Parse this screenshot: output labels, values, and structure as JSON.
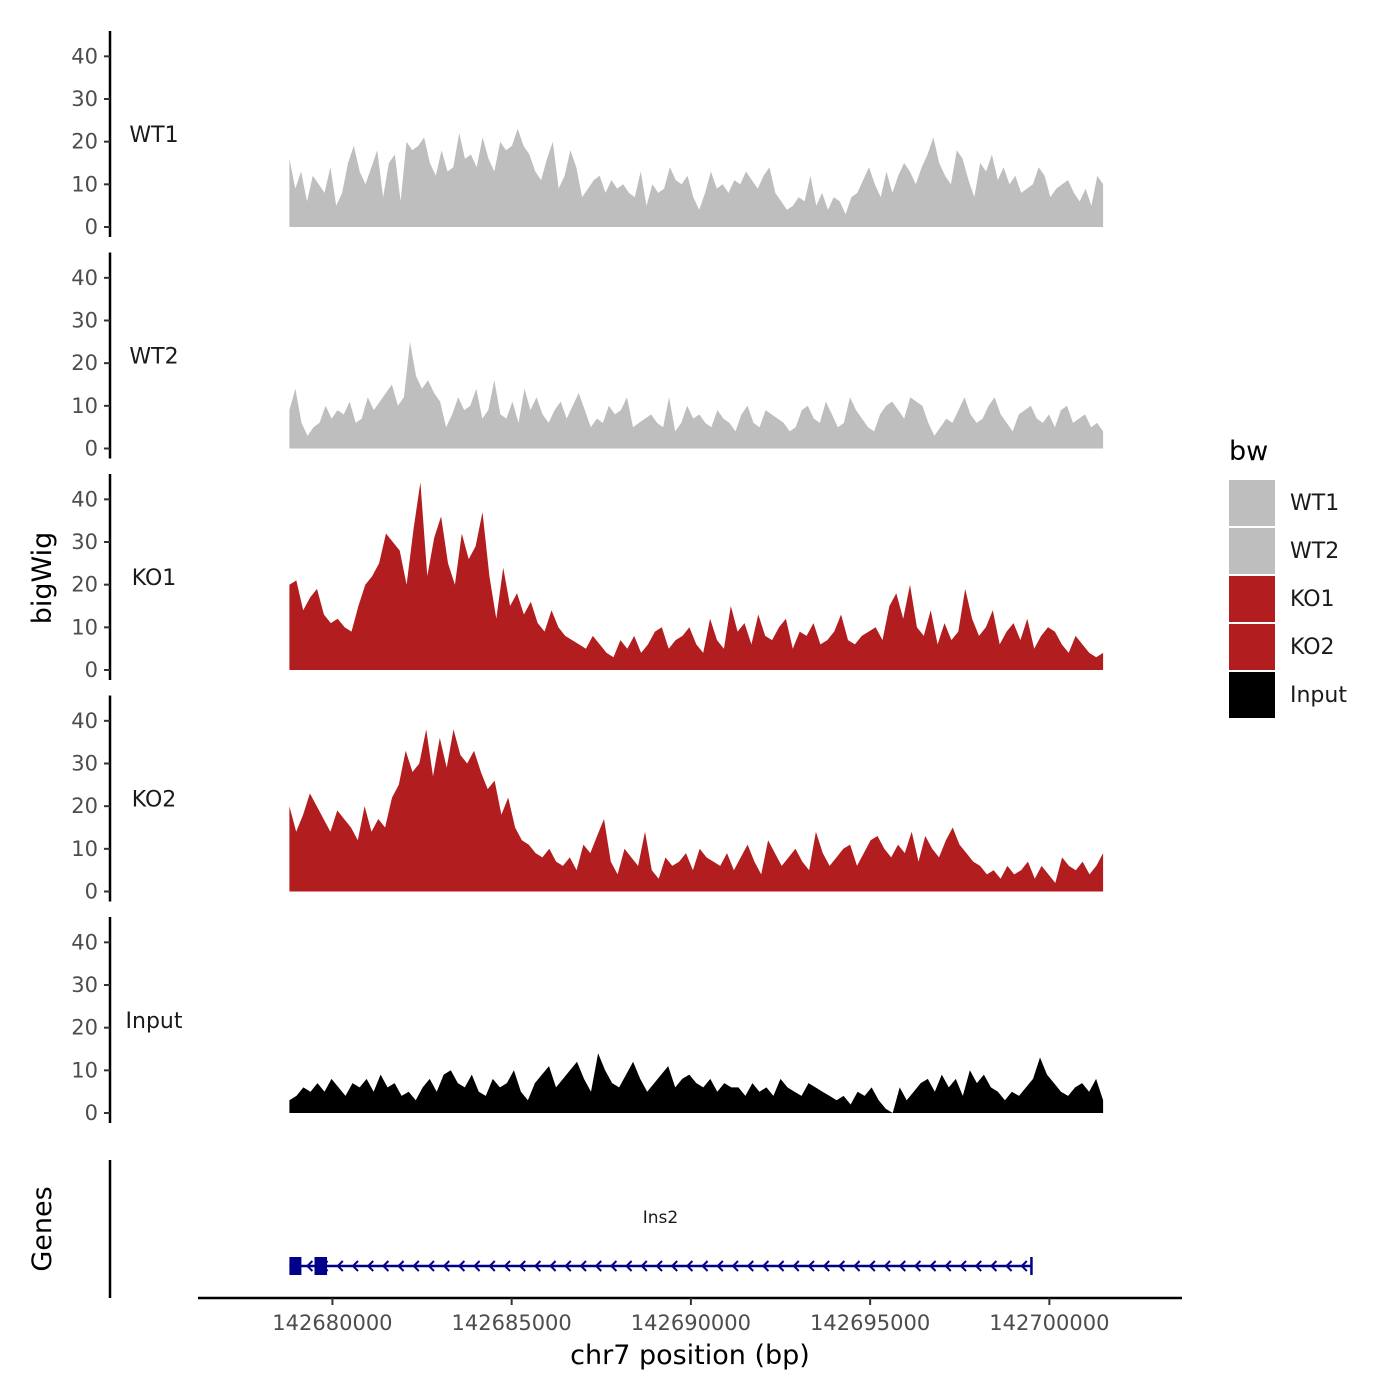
{
  "chart_data": {
    "type": "area",
    "title": "",
    "ylabel": "bigWig",
    "xlabel": "chr7 position (bp)",
    "gene_track_label": "Genes",
    "x_ticks": [
      142680000,
      142685000,
      142690000,
      142695000,
      142700000
    ],
    "x_tick_labels": [
      "142680000",
      "142685000",
      "142690000",
      "142695000",
      "142700000"
    ],
    "xlim": [
      142676250,
      142703700
    ],
    "region": [
      142678800,
      142701500
    ],
    "y_ticks": [
      0,
      10,
      20,
      30,
      40
    ],
    "y_tick_labels": [
      "0",
      "10",
      "20",
      "30",
      "40"
    ],
    "ylim": [
      0,
      45
    ],
    "legend": {
      "title": "bw",
      "entries": [
        {
          "label": "WT1",
          "color": "#bebebe"
        },
        {
          "label": "WT2",
          "color": "#bebebe"
        },
        {
          "label": "KO1",
          "color": "#b21d1f"
        },
        {
          "label": "KO2",
          "color": "#b21d1f"
        },
        {
          "label": "Input",
          "color": "#000000"
        }
      ]
    },
    "series": [
      {
        "name": "WT1",
        "color": "#bebebe",
        "values": [
          16,
          9,
          13,
          6,
          12,
          10,
          8,
          14,
          5,
          8,
          15,
          19,
          13,
          10,
          14,
          18,
          7,
          15,
          17,
          6,
          20,
          18,
          19,
          21,
          15,
          12,
          18,
          13,
          14,
          22,
          16,
          17,
          14,
          21,
          16,
          13,
          20,
          18,
          19,
          23,
          19,
          17,
          13,
          11,
          16,
          20,
          9,
          12,
          18,
          14,
          7,
          9,
          11,
          12,
          8,
          11,
          9,
          10,
          8,
          7,
          13,
          5,
          10,
          8,
          9,
          14,
          11,
          10,
          12,
          7,
          4,
          8,
          13,
          9,
          10,
          8,
          11,
          10,
          13,
          11,
          9,
          12,
          14,
          8,
          6,
          4,
          5,
          7,
          6,
          12,
          5,
          8,
          4,
          7,
          6,
          3,
          7,
          8,
          11,
          14,
          10,
          7,
          13,
          8,
          12,
          15,
          13,
          10,
          14,
          17,
          21,
          15,
          12,
          10,
          18,
          16,
          11,
          7,
          15,
          13,
          17,
          11,
          14,
          10,
          12,
          8,
          9,
          10,
          14,
          12,
          7,
          9,
          10,
          11,
          8,
          6,
          9,
          5,
          12,
          10
        ]
      },
      {
        "name": "WT2",
        "color": "#bebebe",
        "values": [
          9,
          14,
          6,
          3,
          5,
          6,
          10,
          7,
          9,
          8,
          11,
          6,
          7,
          12,
          9,
          11,
          13,
          15,
          10,
          12,
          25,
          17,
          14,
          16,
          13,
          11,
          5,
          8,
          12,
          9,
          10,
          14,
          7,
          9,
          16,
          8,
          7,
          11,
          6,
          14,
          9,
          12,
          8,
          6,
          9,
          11,
          7,
          10,
          13,
          9,
          5,
          7,
          6,
          10,
          8,
          9,
          12,
          5,
          6,
          7,
          8,
          6,
          5,
          12,
          4,
          6,
          10,
          7,
          8,
          6,
          5,
          9,
          7,
          6,
          4,
          8,
          10,
          6,
          5,
          9,
          8,
          7,
          6,
          4,
          5,
          9,
          10,
          7,
          6,
          11,
          8,
          5,
          6,
          12,
          9,
          7,
          5,
          4,
          8,
          10,
          11,
          9,
          7,
          12,
          11,
          10,
          6,
          3,
          5,
          7,
          6,
          9,
          12,
          8,
          6,
          7,
          10,
          12,
          8,
          6,
          4,
          8,
          9,
          10,
          7,
          6,
          8,
          5,
          9,
          10,
          6,
          7,
          8,
          5,
          6,
          4
        ]
      },
      {
        "name": "KO1",
        "color": "#b21d1f",
        "values": [
          20,
          21,
          14,
          17,
          19,
          13,
          11,
          12,
          10,
          9,
          15,
          20,
          22,
          25,
          32,
          30,
          28,
          20,
          33,
          44,
          22,
          31,
          36,
          25,
          20,
          32,
          26,
          29,
          37,
          22,
          12,
          24,
          15,
          18,
          13,
          16,
          11,
          9,
          14,
          10,
          8,
          7,
          6,
          5,
          8,
          6,
          4,
          3,
          7,
          5,
          8,
          4,
          6,
          9,
          10,
          5,
          7,
          8,
          10,
          6,
          4,
          12,
          7,
          5,
          15,
          9,
          11,
          6,
          13,
          8,
          7,
          10,
          12,
          5,
          9,
          8,
          11,
          6,
          7,
          9,
          13,
          7,
          6,
          8,
          9,
          10,
          7,
          15,
          18,
          12,
          20,
          10,
          8,
          14,
          6,
          11,
          7,
          9,
          19,
          12,
          8,
          10,
          14,
          6,
          9,
          11,
          7,
          12,
          5,
          8,
          10,
          9,
          6,
          4,
          8,
          6,
          4,
          3,
          4
        ]
      },
      {
        "name": "KO2",
        "color": "#b21d1f",
        "values": [
          20,
          14,
          18,
          23,
          20,
          17,
          14,
          19,
          17,
          15,
          12,
          20,
          14,
          17,
          15,
          22,
          25,
          33,
          28,
          30,
          38,
          27,
          36,
          29,
          38,
          32,
          30,
          33,
          28,
          24,
          26,
          18,
          22,
          15,
          12,
          11,
          9,
          8,
          10,
          7,
          6,
          8,
          5,
          11,
          9,
          13,
          17,
          7,
          4,
          10,
          8,
          6,
          14,
          5,
          3,
          8,
          6,
          7,
          9,
          5,
          10,
          8,
          7,
          6,
          9,
          5,
          8,
          11,
          7,
          4,
          12,
          9,
          6,
          8,
          10,
          7,
          5,
          14,
          9,
          6,
          8,
          10,
          11,
          6,
          9,
          12,
          13,
          10,
          8,
          11,
          9,
          14,
          7,
          13,
          10,
          8,
          12,
          15,
          11,
          9,
          7,
          6,
          4,
          5,
          3,
          6,
          4,
          5,
          7,
          3,
          6,
          4,
          2,
          8,
          6,
          5,
          7,
          4,
          6,
          9
        ]
      },
      {
        "name": "Input",
        "color": "#000000",
        "values": [
          3,
          4,
          6,
          5,
          7,
          5,
          8,
          6,
          4,
          7,
          6,
          8,
          5,
          9,
          6,
          7,
          4,
          5,
          3,
          6,
          8,
          5,
          9,
          10,
          7,
          6,
          9,
          5,
          4,
          8,
          6,
          7,
          10,
          5,
          3,
          7,
          9,
          11,
          6,
          8,
          10,
          12,
          8,
          5,
          14,
          10,
          7,
          6,
          9,
          12,
          8,
          5,
          7,
          9,
          11,
          6,
          8,
          9,
          7,
          6,
          8,
          5,
          7,
          6,
          6,
          4,
          7,
          5,
          6,
          4,
          8,
          6,
          5,
          4,
          7,
          6,
          5,
          4,
          3,
          4,
          2,
          5,
          4,
          6,
          3,
          1,
          0,
          6,
          3,
          5,
          7,
          8,
          5,
          9,
          6,
          8,
          4,
          10,
          7,
          9,
          6,
          5,
          3,
          5,
          4,
          6,
          8,
          13,
          9,
          7,
          5,
          4,
          6,
          7,
          5,
          8,
          3
        ]
      }
    ],
    "genes": [
      {
        "name": "Ins2",
        "start": 142678800,
        "end": 142699500,
        "strand": "-",
        "exons": [
          [
            142678800,
            142679100
          ],
          [
            142679500,
            142679850
          ]
        ],
        "color": "#00008b"
      }
    ]
  }
}
